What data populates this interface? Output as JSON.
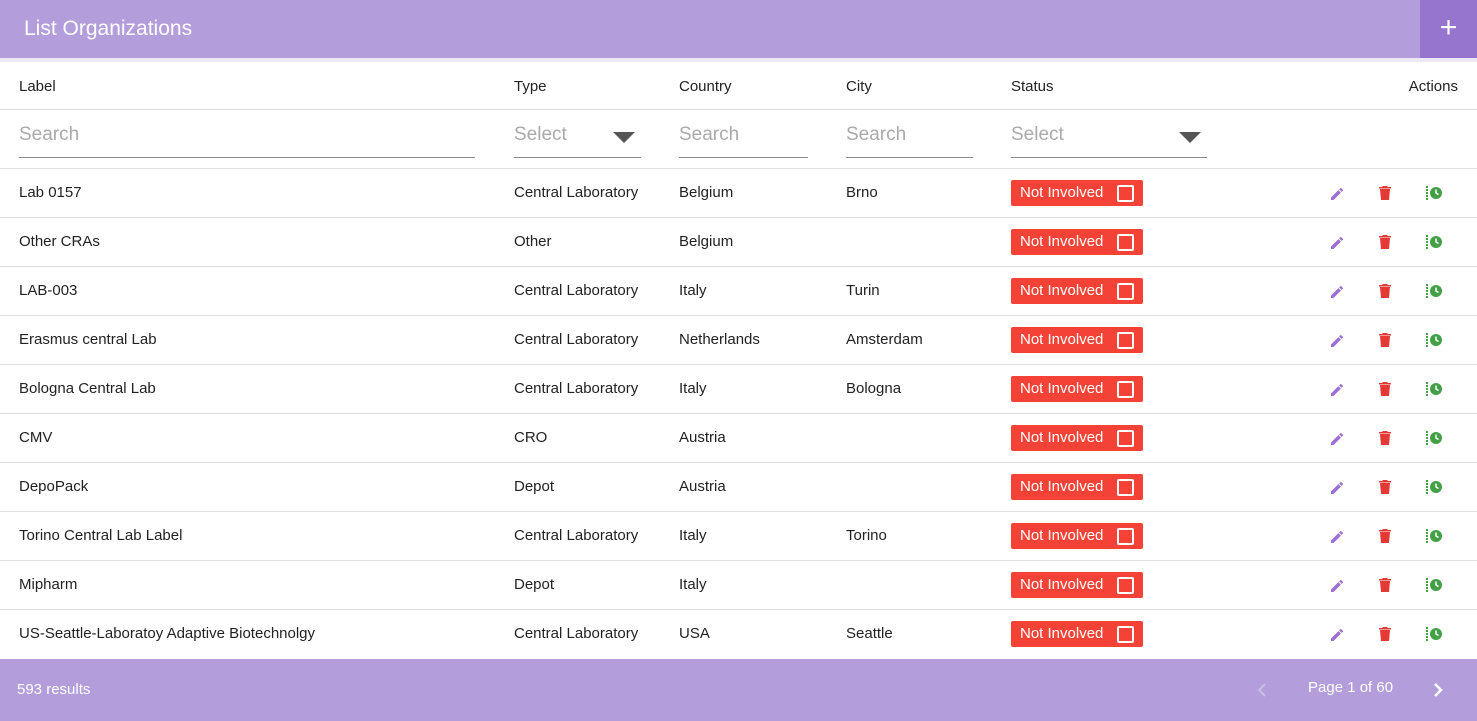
{
  "header": {
    "title": "List Organizations"
  },
  "table": {
    "columns": [
      "Label",
      "Type",
      "Country",
      "City",
      "Status",
      "Actions"
    ],
    "filters": [
      "Search",
      "Select",
      "Search",
      "Search",
      "Select"
    ],
    "rows": [
      [
        "Lab 0157",
        "Central Laboratory",
        "Belgium",
        "Brno",
        "Not Involved"
      ],
      [
        "Other CRAs",
        "Other",
        "Belgium",
        null,
        "Not Involved"
      ],
      [
        "LAB-003",
        "Central Laboratory",
        "Italy",
        "Turin",
        "Not Involved"
      ],
      [
        "Erasmus central Lab",
        "Central Laboratory",
        "Netherlands",
        "Amsterdam",
        "Not Involved"
      ],
      [
        "Bologna Central Lab",
        "Central Laboratory",
        "Italy",
        "Bologna",
        "Not Involved"
      ],
      [
        "CMV",
        "CRO",
        "Austria",
        null,
        "Not Involved"
      ],
      [
        "DepoPack",
        "Depot",
        "Austria",
        null,
        "Not Involved"
      ],
      [
        "Torino Central Lab Label",
        "Central Laboratory",
        "Italy",
        "Torino",
        "Not Involved"
      ],
      [
        "Mipharm",
        "Depot",
        "Italy",
        null,
        "Not Involved"
      ],
      [
        "US-Seattle-Laboratoy Adaptive Biotechnolgy",
        "Central Laboratory",
        "USA",
        "Seattle",
        "Not Involved"
      ]
    ]
  },
  "footer": {
    "results": "593 results",
    "page": "Page 1 of 60"
  }
}
